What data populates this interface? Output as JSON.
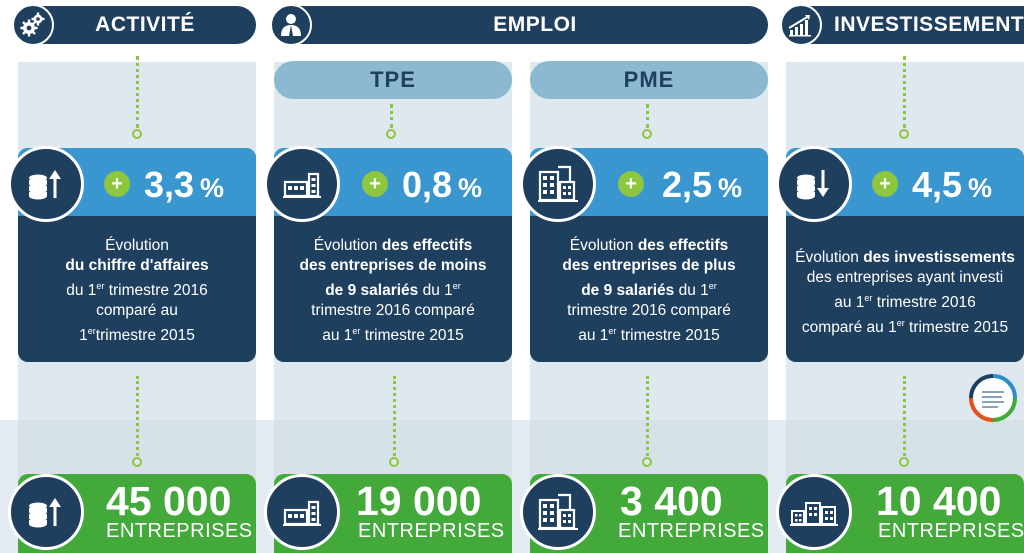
{
  "headers": {
    "activite": {
      "label": "ACTIVITÉ",
      "icon": "gears-icon"
    },
    "emploi": {
      "label": "EMPLOI",
      "icon": "people-icon"
    },
    "investissement": {
      "label": "INVESTISSEMENT",
      "icon": "bar-chart-icon"
    }
  },
  "subheaders": {
    "tpe": "TPE",
    "pme": "PME"
  },
  "cards": [
    {
      "sign": "+",
      "value": "3,3",
      "unit": "%",
      "icon": "coins-up-icon",
      "desc": [
        {
          "t": "Évolution",
          "b": false
        },
        {
          "t": "du chiffre d'affaires",
          "b": true
        },
        {
          "t": "du 1",
          "b": false
        },
        {
          "t": "er",
          "sup": true
        },
        {
          "t": " trimestre 2016",
          "b": false
        },
        {
          "t": "comparé au",
          "b": false
        },
        {
          "t": "1",
          "b": false
        },
        {
          "t": "er",
          "sup": true
        },
        {
          "t": "trimestre 2015",
          "b": false
        }
      ],
      "lines": [
        "Évolution",
        "du chiffre d'affaires",
        "du 1er trimestre 2016",
        "comparé au",
        "1ertrimestre 2015"
      ]
    },
    {
      "sign": "+",
      "value": "0,8",
      "unit": "%",
      "icon": "factory-icon",
      "lines": [
        "Évolution des effectifs",
        "des entreprises de moins",
        "de 9 salariés du 1er",
        "trimestre 2016 comparé",
        "au 1er trimestre 2015"
      ]
    },
    {
      "sign": "+",
      "value": "2,5",
      "unit": "%",
      "icon": "buildings-icon",
      "lines": [
        "Évolution des effectifs",
        "des entreprises de plus",
        "de 9 salariés du 1er",
        "trimestre 2016 comparé",
        "au 1er trimestre 2015"
      ]
    },
    {
      "sign": "+",
      "value": "4,5",
      "unit": "%",
      "icon": "coins-down-icon",
      "lines": [
        "Évolution des investissements",
        "des entreprises ayant investi",
        "au 1er trimestre 2016",
        "comparé au 1er trimestre 2015"
      ]
    }
  ],
  "text": {
    "c1": {
      "a": "Évolution",
      "b": "du chiffre d'affaires",
      "c1": "du 1",
      "sup1": "er",
      "c2": " trimestre 2016",
      "d": "comparé au",
      "e1": "1",
      "sup2": "er",
      "e2": "trimestre 2015"
    },
    "c2": {
      "a": "Évolution ",
      "ab": "des effectifs",
      "b": "des entreprises de moins",
      "c": "de 9 salariés",
      "c2": " du 1",
      "sup1": "er",
      "d": "trimestre 2016 comparé",
      "e1": "au 1",
      "sup2": "er",
      "e2": " trimestre 2015"
    },
    "c3": {
      "a": "Évolution ",
      "ab": "des effectifs",
      "b": "des entreprises de plus",
      "c": "de 9 salariés",
      "c2": " du 1",
      "sup1": "er",
      "d": "trimestre 2016 comparé",
      "e1": "au 1",
      "sup2": "er",
      "e2": " trimestre 2015"
    },
    "c4": {
      "a": "Évolution ",
      "ab": "des investissements",
      "b": "des entreprises ayant investi",
      "c1": "au 1",
      "sup1": "er",
      "c2": " trimestre 2016",
      "d1": "comparé au 1",
      "sup2": "er",
      "d2": " trimestre 2015"
    }
  },
  "counts": [
    {
      "number": "45 000",
      "label": "ENTREPRISES"
    },
    {
      "number": "19 000",
      "label": "ENTREPRISES"
    },
    {
      "number": "3 400",
      "label": "ENTREPRISES"
    },
    {
      "number": "10 400",
      "label": "ENTREPRISES"
    }
  ],
  "colors": {
    "dark": "#1f3f5f",
    "blue": "#3a96cf",
    "green": "#44a93b",
    "lime": "#8dc63f",
    "light": "#8cb8d0"
  }
}
